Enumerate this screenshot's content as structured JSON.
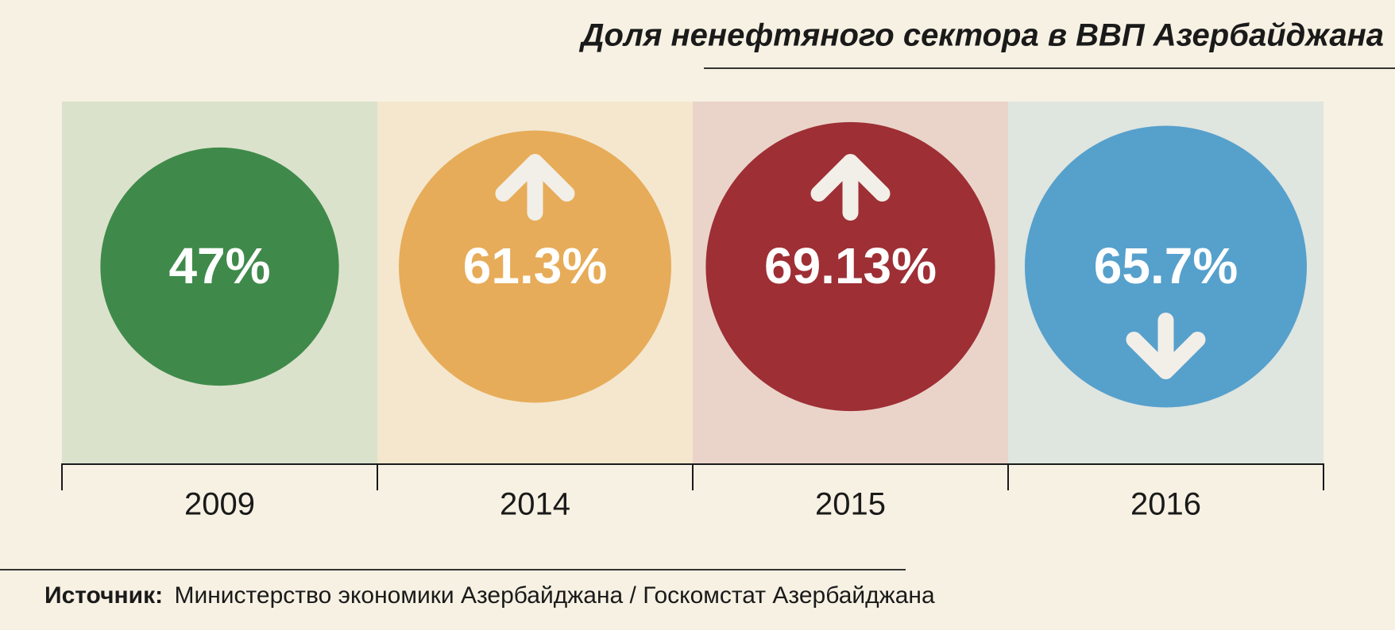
{
  "chart_data": {
    "type": "bubble",
    "title": "Доля ненефтяного сектора в ВВП Азербайджана",
    "categories": [
      "2009",
      "2014",
      "2015",
      "2016"
    ],
    "values": [
      47,
      61.3,
      69.13,
      65.7
    ],
    "value_labels": [
      "47%",
      "61.3%",
      "69.13%",
      "65.7%"
    ],
    "colors": [
      "#3f8a4a",
      "#e7ac59",
      "#9e2f35",
      "#56a0cc"
    ],
    "source_label": "Источник:",
    "source": "Министерство экономики Азербайджана / Госкомстат Азербайджана"
  }
}
